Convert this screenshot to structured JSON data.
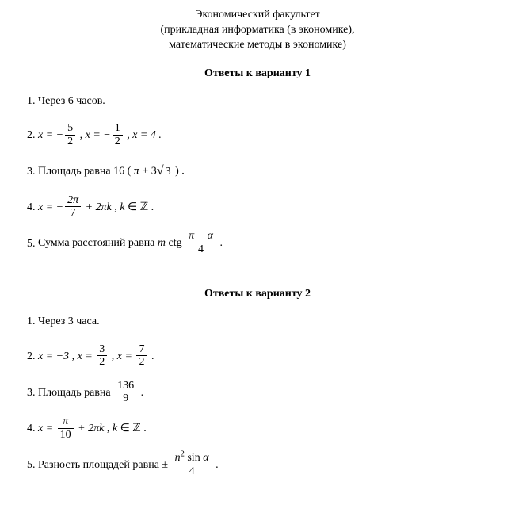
{
  "header": {
    "line1": "Экономический факультет",
    "line2": "(прикладная информатика (в экономике),",
    "line3": "математические методы в экономике)"
  },
  "variant1": {
    "title": "Ответы к варианту 1",
    "a1": "Через 6 часов.",
    "a2": {
      "x_eq_neg": "x = −",
      "f1_num": "5",
      "f1_den": "2",
      "sep": " ,  ",
      "f2_num": "1",
      "f2_den": "2",
      "tail": " ,  x = 4 ."
    },
    "a3": {
      "lead": "Площадь равна 16 ( ",
      "pi": "π",
      "plus3": " + 3",
      "sqrt_arg": "3",
      "tail": " ) ."
    },
    "a4": {
      "x_eq_neg": "x = −",
      "f_num": "2π",
      "f_den": "7",
      "mid": " + 2π",
      "k": "k",
      "sep": " ,  ",
      "k2": "k",
      "in": " ∈ ",
      "Z": "ℤ",
      "dot": " ."
    },
    "a5": {
      "lead": "Сумма расстояний равна ",
      "m": "m",
      "ctg": " ctg ",
      "f_num": "π − α",
      "f_den": "4",
      "dot": " ."
    }
  },
  "variant2": {
    "title": "Ответы к варианту 2",
    "a1": "Через 3 часа.",
    "a2": {
      "p1": "x = −3 ,  ",
      "x_eq": "x = ",
      "f1_num": "3",
      "f1_den": "2",
      "sep": " ,  ",
      "f2_num": "7",
      "f2_den": "2",
      "dot": " ."
    },
    "a3": {
      "lead": "Площадь равна ",
      "f_num": "136",
      "f_den": "9",
      "dot": " ."
    },
    "a4": {
      "x_eq": "x = ",
      "f_num": "π",
      "f_den": "10",
      "mid": " + 2π",
      "k": "k",
      "sep": " ,  ",
      "k2": "k",
      "in": " ∈ ",
      "Z": "ℤ",
      "dot": " ."
    },
    "a5": {
      "lead": "Разность площадей равна ",
      "pm": "± ",
      "f_num_n": "n",
      "f_num_sup": "2",
      "f_num_sin": " sin ",
      "f_num_a": "α",
      "f_den": "4",
      "dot": " ."
    }
  }
}
